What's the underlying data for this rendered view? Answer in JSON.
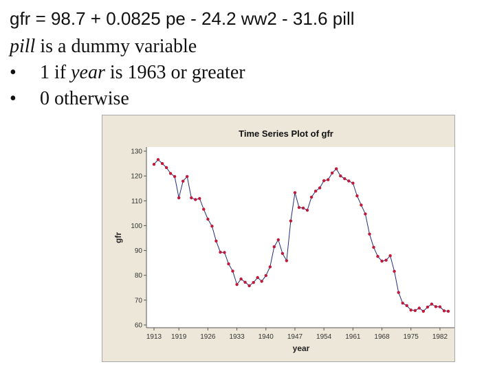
{
  "slide": {
    "equation": "gfr = 98.7 + 0.0825 pe - 24.2 ww2 - 31.6 pill",
    "dummy_var": "pill",
    "dummy_desc": " is a dummy variable",
    "bullet1_prefix": "1 if ",
    "bullet1_var": "year",
    "bullet1_suffix": " is 1963 or greater",
    "bullet2": "0 otherwise",
    "bullet_symbol": "•"
  },
  "chart_data": {
    "type": "line",
    "title": "Time Series Plot of gfr",
    "xlabel": "year",
    "ylabel": "gfr",
    "xlim": [
      1913,
      1984
    ],
    "ylim": [
      60,
      130
    ],
    "yticks": [
      60,
      70,
      80,
      90,
      100,
      110,
      120,
      130
    ],
    "xticks": [
      1913,
      1919,
      1926,
      1933,
      1940,
      1947,
      1954,
      1961,
      1968,
      1975,
      1982
    ],
    "line_color": "#1f2d7a",
    "marker_color": "#c0193a",
    "x": [
      1913,
      1914,
      1915,
      1916,
      1917,
      1918,
      1919,
      1920,
      1921,
      1922,
      1923,
      1924,
      1925,
      1926,
      1927,
      1928,
      1929,
      1930,
      1931,
      1932,
      1933,
      1934,
      1935,
      1936,
      1937,
      1938,
      1939,
      1940,
      1941,
      1942,
      1943,
      1944,
      1945,
      1946,
      1947,
      1948,
      1949,
      1950,
      1951,
      1952,
      1953,
      1954,
      1955,
      1956,
      1957,
      1958,
      1959,
      1960,
      1961,
      1962,
      1963,
      1964,
      1965,
      1966,
      1967,
      1968,
      1969,
      1970,
      1971,
      1972,
      1973,
      1974,
      1975,
      1976,
      1977,
      1978,
      1979,
      1980,
      1981,
      1982,
      1983,
      1984
    ],
    "values": [
      124.7,
      126.6,
      125.0,
      123.4,
      121.0,
      119.8,
      111.2,
      117.9,
      119.8,
      111.2,
      110.5,
      110.9,
      106.6,
      102.6,
      99.8,
      93.8,
      89.3,
      89.2,
      84.6,
      81.7,
      76.3,
      78.5,
      77.2,
      75.8,
      77.1,
      79.1,
      77.6,
      79.9,
      83.4,
      91.5,
      94.3,
      88.8,
      85.9,
      101.9,
      113.3,
      107.3,
      107.1,
      106.2,
      111.5,
      113.9,
      115.2,
      118.1,
      118.5,
      121.2,
      122.9,
      120.0,
      118.9,
      118.0,
      117.1,
      112.0,
      108.3,
      104.7,
      96.6,
      91.3,
      87.6,
      85.7,
      86.1,
      87.9,
      81.6,
      73.1,
      68.8,
      67.8,
      66.0,
      65.8,
      66.8,
      65.5,
      67.2,
      68.4,
      67.4,
      67.3,
      65.7,
      65.5
    ]
  }
}
